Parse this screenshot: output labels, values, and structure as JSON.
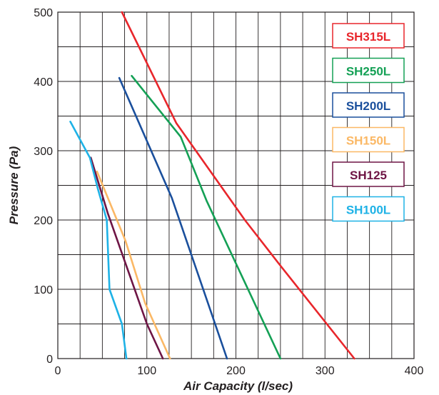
{
  "chart_data": {
    "type": "line",
    "title": "",
    "xlabel": "Air Capacity (l/sec)",
    "ylabel": "Pressure (Pa)",
    "xlim": [
      0,
      400
    ],
    "ylim": [
      0,
      500
    ],
    "xticks": [
      0,
      100,
      200,
      300,
      400
    ],
    "yticks": [
      0,
      100,
      200,
      300,
      400,
      500
    ],
    "grid": true,
    "legend_position": "right",
    "series": [
      {
        "name": "SH315L",
        "color": "#e8262b",
        "points": [
          [
            72,
            500
          ],
          [
            133,
            340
          ],
          [
            210,
            200
          ],
          [
            250,
            134
          ],
          [
            333,
            0
          ]
        ]
      },
      {
        "name": "SH250L",
        "color": "#14a055",
        "points": [
          [
            83,
            408
          ],
          [
            138,
            320
          ],
          [
            167,
            228
          ],
          [
            250,
            0
          ]
        ]
      },
      {
        "name": "SH200L",
        "color": "#1a4f9c",
        "points": [
          [
            69,
            405
          ],
          [
            128,
            232
          ],
          [
            190,
            0
          ]
        ]
      },
      {
        "name": "SH150L",
        "color": "#fbb865",
        "points": [
          [
            44,
            270
          ],
          [
            76,
            170
          ],
          [
            98,
            80
          ],
          [
            126,
            0
          ]
        ]
      },
      {
        "name": "SH125",
        "color": "#6e1545",
        "points": [
          [
            37,
            290
          ],
          [
            56,
            210
          ],
          [
            100,
            50
          ],
          [
            118,
            0
          ]
        ]
      },
      {
        "name": "SH100L",
        "color": "#1eb2e6",
        "points": [
          [
            14,
            342
          ],
          [
            36,
            290
          ],
          [
            45,
            245
          ],
          [
            55,
            200
          ],
          [
            58,
            100
          ],
          [
            72,
            50
          ],
          [
            77,
            0
          ]
        ]
      }
    ]
  }
}
